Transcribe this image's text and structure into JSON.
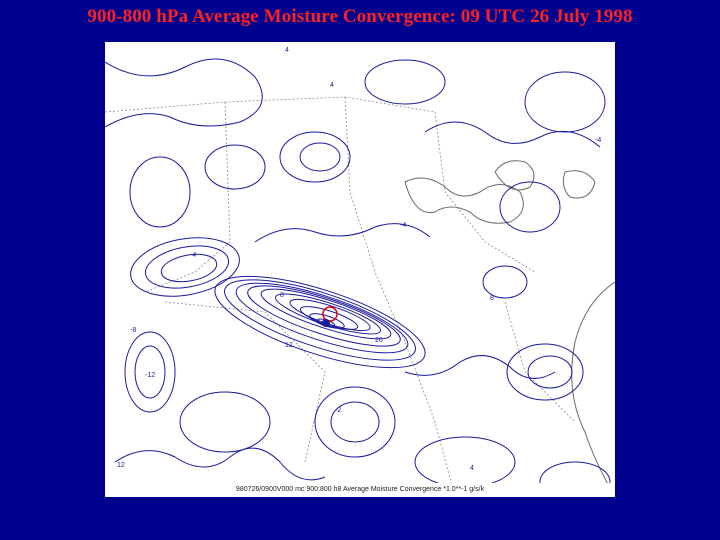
{
  "title": "900-800 hPa Average Moisture Convergence: 09 UTC 26 July 1998",
  "footer_caption": "980726/0900V000 mc 900:800 h8 Average Moisture Convergence *1.0**-1 g/s/k",
  "contour_labels": [
    "4",
    "-4",
    "-8",
    "12",
    "-12",
    "8",
    "4",
    "-4",
    "20",
    "8",
    "-2",
    "4",
    "-4",
    "12"
  ],
  "colors": {
    "background": "#00008f",
    "title": "#ff2020",
    "contour": "#1a1aa0",
    "geography": "#7a7a7a",
    "marker": "#e00000"
  }
}
